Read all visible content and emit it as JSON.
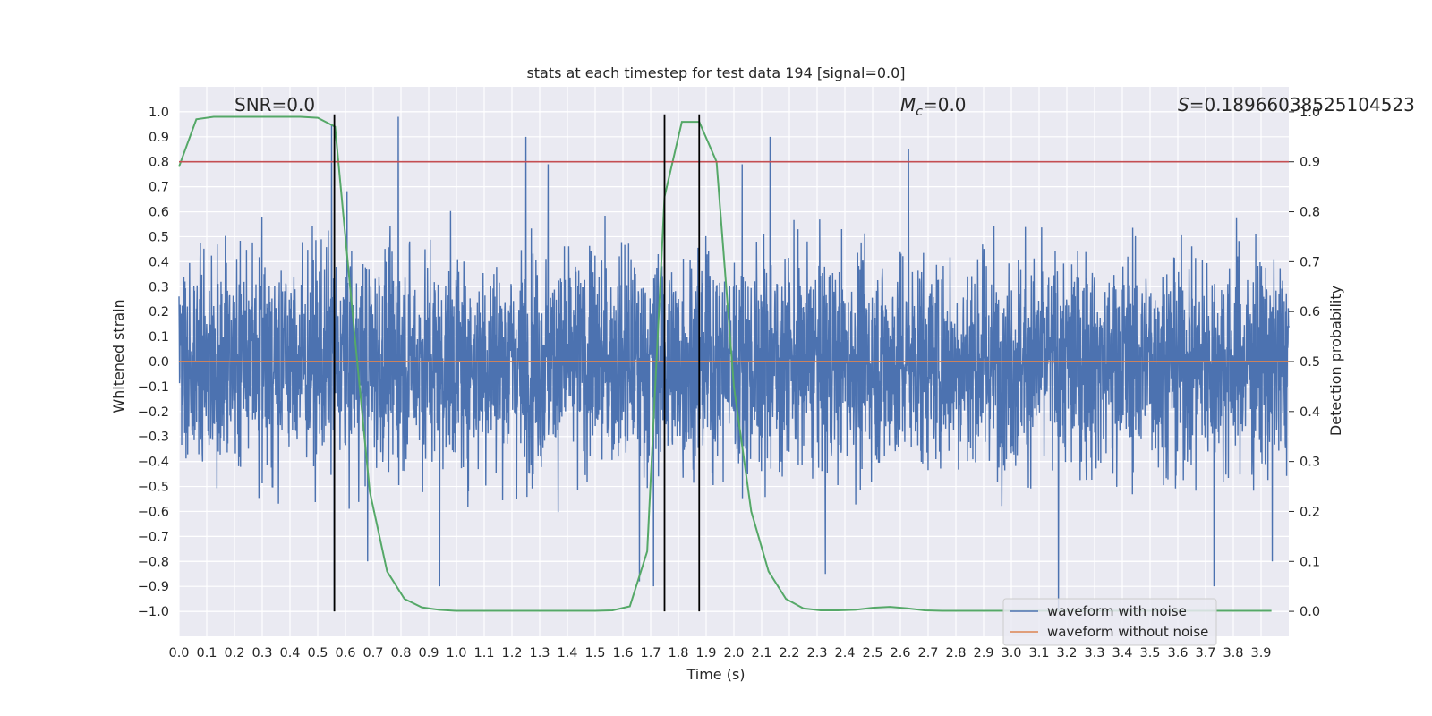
{
  "chart_data": {
    "type": "line",
    "title": "stats at each timestep for test data 194 [signal=0.0]",
    "xlabel": "Time (s)",
    "ylabel": "Whitened strain",
    "ylabel_right": "Detection probability",
    "xlim": [
      0.0,
      4.0
    ],
    "ylim": [
      -1.1,
      1.1
    ],
    "ylim_right": [
      -0.05,
      1.05
    ],
    "x_ticks": [
      0.0,
      0.1,
      0.2,
      0.3,
      0.4,
      0.5,
      0.6,
      0.7,
      0.8,
      0.9,
      1.0,
      1.1,
      1.2,
      1.3,
      1.4,
      1.5,
      1.6,
      1.7,
      1.8,
      1.9,
      2.0,
      2.1,
      2.2,
      2.3,
      2.4,
      2.5,
      2.6,
      2.7,
      2.8,
      2.9,
      3.0,
      3.1,
      3.2,
      3.3,
      3.4,
      3.5,
      3.6,
      3.7,
      3.8,
      3.9
    ],
    "x_tick_labels": [
      "0.0",
      "0.1",
      "0.2",
      "0.3",
      "0.4",
      "0.5",
      "0.6",
      "0.7",
      "0.8",
      "0.9",
      "1.0",
      "1.1",
      "1.2",
      "1.3",
      "1.4",
      "1.5",
      "1.6",
      "1.7",
      "1.8",
      "1.9",
      "2.0",
      "2.1",
      "2.2",
      "2.3",
      "2.4",
      "2.5",
      "2.6",
      "2.7",
      "2.8",
      "2.9",
      "3.0",
      "3.1",
      "3.2",
      "3.3",
      "3.4",
      "3.5",
      "3.6",
      "3.7",
      "3.8",
      "3.9"
    ],
    "y_ticks": [
      -1.0,
      -0.9,
      -0.8,
      -0.7,
      -0.6,
      -0.5,
      -0.4,
      -0.3,
      -0.2,
      -0.1,
      0.0,
      0.1,
      0.2,
      0.3,
      0.4,
      0.5,
      0.6,
      0.7,
      0.8,
      0.9,
      1.0
    ],
    "y_tick_labels": [
      "−1.0",
      "−0.9",
      "−0.8",
      "−0.7",
      "−0.6",
      "−0.5",
      "−0.4",
      "−0.3",
      "−0.2",
      "−0.1",
      "0.0",
      "0.1",
      "0.2",
      "0.3",
      "0.4",
      "0.5",
      "0.6",
      "0.7",
      "0.8",
      "0.9",
      "1.0"
    ],
    "y_ticks_right": [
      0.0,
      0.1,
      0.2,
      0.3,
      0.4,
      0.5,
      0.6,
      0.7,
      0.8,
      0.9,
      1.0
    ],
    "y_tick_labels_right": [
      "0.0",
      "0.1",
      "0.2",
      "0.3",
      "0.4",
      "0.5",
      "0.6",
      "0.7",
      "0.8",
      "0.9",
      "1.0"
    ],
    "grid": true,
    "legend_placement": "lower-right",
    "annotations": {
      "snr": "SNR=0.0",
      "mc_symbol": "M",
      "mc_subscript": "c",
      "mc_value": "=0.0",
      "s_symbol": "S",
      "s_value": "=0.18966038525104523"
    },
    "series": [
      {
        "name": "waveform with noise",
        "color": "#4c72b0",
        "kind": "noise",
        "amplitude_range": [
          -1.0,
          1.0
        ],
        "sample_count": 4096,
        "peaks": [
          {
            "x": 0.79,
            "y": 0.98
          },
          {
            "x": 0.55,
            "y": 0.95
          },
          {
            "x": 1.25,
            "y": 0.9
          },
          {
            "x": 2.13,
            "y": 0.9
          },
          {
            "x": 1.33,
            "y": 0.79
          },
          {
            "x": 2.03,
            "y": 0.79
          },
          {
            "x": 2.63,
            "y": 0.85
          },
          {
            "x": 0.56,
            "y": -1.0
          },
          {
            "x": 3.17,
            "y": -1.0
          },
          {
            "x": 1.71,
            "y": -0.9
          },
          {
            "x": 0.94,
            "y": -0.9
          },
          {
            "x": 3.73,
            "y": -0.9
          },
          {
            "x": 2.33,
            "y": -0.85
          },
          {
            "x": 0.68,
            "y": -0.8
          },
          {
            "x": 1.66,
            "y": -0.88
          },
          {
            "x": 3.94,
            "y": -0.8
          }
        ]
      },
      {
        "name": "waveform without noise",
        "color": "#dd8452",
        "x": [
          0.0,
          4.0
        ],
        "y": [
          0.0,
          0.0
        ]
      },
      {
        "name": "detection probability",
        "color": "#55a868",
        "axis": "right",
        "x": [
          0.0,
          0.0625,
          0.125,
          0.1875,
          0.25,
          0.3125,
          0.375,
          0.4375,
          0.5,
          0.5625,
          0.625,
          0.6875,
          0.75,
          0.8125,
          0.875,
          0.9375,
          1.0,
          1.0625,
          1.125,
          1.1875,
          1.25,
          1.3125,
          1.375,
          1.4375,
          1.5,
          1.5625,
          1.625,
          1.6875,
          1.75,
          1.8125,
          1.875,
          1.9375,
          2.0,
          2.0625,
          2.125,
          2.1875,
          2.25,
          2.3125,
          2.375,
          2.4375,
          2.5,
          2.5625,
          2.625,
          2.6875,
          2.75,
          2.8125,
          2.875,
          2.9375,
          3.0,
          3.0625,
          3.125,
          3.1875,
          3.25,
          3.3125,
          3.375,
          3.4375,
          3.5,
          3.5625,
          3.625,
          3.6875,
          3.75,
          3.8125,
          3.875,
          3.9375
        ],
        "y": [
          0.89,
          0.985,
          0.99,
          0.99,
          0.99,
          0.99,
          0.99,
          0.99,
          0.988,
          0.97,
          0.6,
          0.24,
          0.08,
          0.025,
          0.008,
          0.003,
          0.001,
          0.001,
          0.001,
          0.001,
          0.001,
          0.001,
          0.001,
          0.001,
          0.001,
          0.002,
          0.01,
          0.12,
          0.83,
          0.98,
          0.98,
          0.9,
          0.45,
          0.2,
          0.08,
          0.025,
          0.006,
          0.002,
          0.002,
          0.003,
          0.007,
          0.009,
          0.006,
          0.002,
          0.001,
          0.001,
          0.001,
          0.001,
          0.001,
          0.001,
          0.001,
          0.001,
          0.001,
          0.001,
          0.001,
          0.001,
          0.001,
          0.001,
          0.001,
          0.001,
          0.001,
          0.001,
          0.001,
          0.001
        ]
      }
    ],
    "threshold_line": {
      "axis": "right",
      "y": 0.9,
      "color": "#c44e52"
    },
    "vertical_lines": {
      "x": [
        0.56,
        1.75,
        1.875
      ],
      "y_range": [
        -1.0,
        0.99
      ],
      "color": "#000000"
    }
  }
}
